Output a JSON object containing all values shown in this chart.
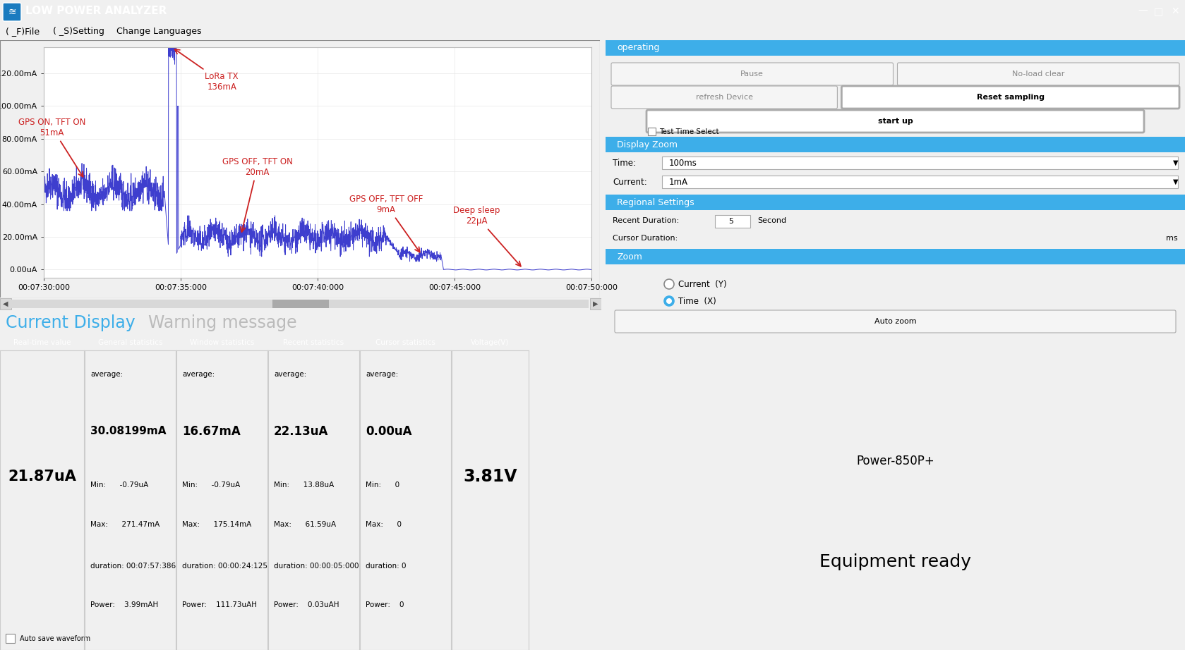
{
  "title_bar": "LOW POWER ANALYZER",
  "menu_items": [
    "( _F)File",
    "( _S)Setting",
    "Change Languages"
  ],
  "titlebar_color": "#3daee9",
  "bg_color": "#f0f0f0",
  "plot_bg": "#ffffff",
  "line_color": "#3333cc",
  "annotation_color": "#cc2222",
  "yticks": [
    "0.00uA",
    "20.00mA",
    "40.00mA",
    "60.00mA",
    "80.00mA",
    "100.00mA",
    "120.00mA"
  ],
  "ytick_vals": [
    0,
    20,
    40,
    60,
    80,
    100,
    120
  ],
  "xticks": [
    "00:07:30:000",
    "00:07:35:000",
    "00:07:40:000",
    "00:07:45:000",
    "00:07:50:000"
  ],
  "panel_header_color": "#3daee9",
  "section_operating": "operating",
  "btn_pause": "Pause",
  "btn_noload": "No-load clear",
  "btn_refresh": "refresh Device",
  "btn_reset": "Reset sampling",
  "btn_startup": "start up",
  "chk_testtime": "Test Time Select",
  "section_display_zoom": "Display Zoom",
  "lbl_time": "Time:",
  "dd_time": "100ms",
  "lbl_current": "Current:",
  "dd_current": "1mA",
  "section_regional": "Regional Settings",
  "lbl_recent": "Recent Duration:",
  "val_recent": "5",
  "lbl_recent_unit": "Second",
  "lbl_cursor": "Cursor Duration:",
  "lbl_cursor_unit": "ms",
  "section_zoom": "Zoom",
  "radio_current": "Current  (Y)",
  "radio_time": "Time  (X)",
  "btn_autozoom": "Auto zoom",
  "bottom_label1": "Power-850P+",
  "bottom_label2": "Equipment ready",
  "current_display_label": "Current Display",
  "warning_label": "Warning message",
  "table_headers": [
    "Real-time value",
    "General statistics",
    "Window statistics",
    "Recent statistics",
    "Cursor statistics",
    "Voltage(V)"
  ],
  "realtime_val": "21.87uA",
  "autosave_label": "Auto save waveform",
  "gen_avg": "30.08199mA",
  "gen_min": "-0.79uA",
  "gen_max": "271.47mA",
  "gen_dur": "00:07:57:386",
  "gen_power": "3.99mAH",
  "win_avg": "16.67mA",
  "win_min": "-0.79uA",
  "win_max": "175.14mA",
  "win_dur": "00:00:24:125",
  "win_power": "111.73uAH",
  "rec_avg": "22.13uA",
  "rec_min": "13.88uA",
  "rec_max": "61.59uA",
  "rec_dur": "00:00:05:000",
  "rec_power": "0.03uAH",
  "cur_avg": "0.00uA",
  "cur_min": "0",
  "cur_max": "0",
  "cur_dur": "0",
  "cur_power": "0",
  "voltage_val": "3.81V"
}
